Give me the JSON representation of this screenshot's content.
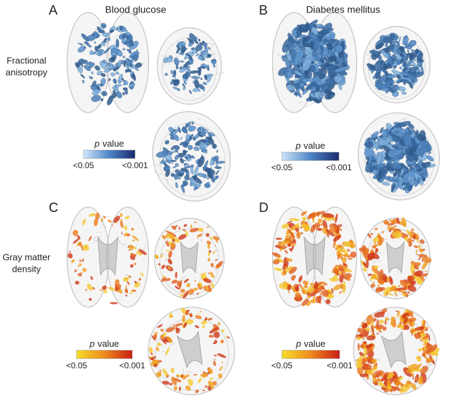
{
  "panels": [
    {
      "label": "A",
      "title": "Blood glucose",
      "legend": {
        "title_italic": "p",
        "title_rest": "value",
        "low": "<0.05",
        "high": "<0.001"
      }
    },
    {
      "label": "B",
      "title": "Diabetes mellitus",
      "legend": {
        "title_italic": "p",
        "title_rest": "value",
        "low": "<0.05",
        "high": "<0.001"
      }
    },
    {
      "label": "C",
      "legend": {
        "title_italic": "p",
        "title_rest": "value",
        "low": "<0.05",
        "high": "<0.001"
      }
    },
    {
      "label": "D",
      "legend": {
        "title_italic": "p",
        "title_rest": "value",
        "low": "<0.05",
        "high": "<0.001"
      }
    }
  ],
  "rows": [
    {
      "label_lines": [
        "Fractional",
        "anisotropy"
      ]
    },
    {
      "label_lines": [
        "Gray matter",
        "density"
      ]
    }
  ]
}
